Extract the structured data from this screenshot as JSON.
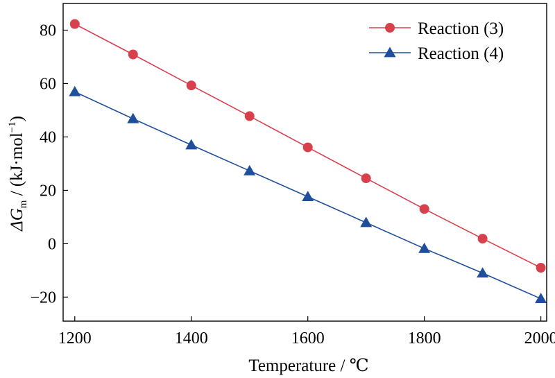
{
  "chart_data": {
    "type": "line",
    "xlabel": "Temperature / ℃",
    "ylabel": {
      "prefix": "ΔG",
      "subscript": "m",
      "unit": " / (kJ·mol",
      "superscript": "−1",
      "suffix": ")"
    },
    "xlim": [
      1180,
      2010
    ],
    "ylim": [
      -29,
      90
    ],
    "xticks": [
      1200,
      1400,
      1600,
      1800,
      2000
    ],
    "yticks": [
      -20,
      0,
      20,
      40,
      60,
      80
    ],
    "ytick_labels": [
      "−20",
      "0",
      "20",
      "40",
      "60",
      "80"
    ],
    "grid": false,
    "legend_position": "top-right",
    "x": [
      1200,
      1300,
      1400,
      1500,
      1600,
      1700,
      1800,
      1900,
      2000
    ],
    "series": [
      {
        "name": "Reaction (3)",
        "marker": "circle",
        "color": "#d9404e",
        "values": [
          82.3,
          70.9,
          59.3,
          47.8,
          36.1,
          24.5,
          13.0,
          1.9,
          -9.0
        ]
      },
      {
        "name": "Reaction (4)",
        "marker": "triangle",
        "color": "#1f4e9c",
        "values": [
          56.9,
          46.8,
          37.0,
          27.3,
          17.6,
          7.9,
          -1.8,
          -11.0,
          -20.6
        ]
      }
    ]
  }
}
